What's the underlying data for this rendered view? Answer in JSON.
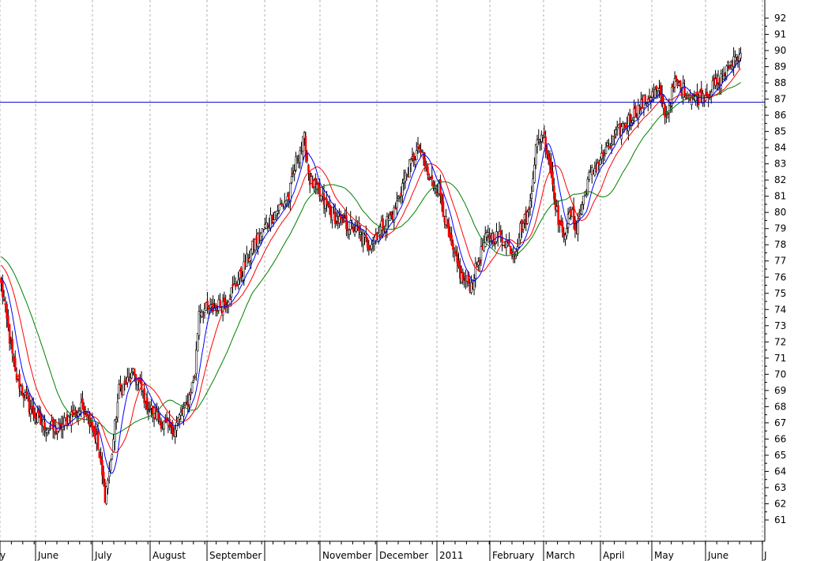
{
  "chart_data": {
    "type": "candlestick",
    "title": "",
    "xlabel": "",
    "ylabel": "",
    "ylim": [
      60,
      93
    ],
    "y_ticks": [
      61,
      62,
      63,
      64,
      65,
      66,
      67,
      68,
      69,
      70,
      71,
      72,
      73,
      74,
      75,
      76,
      77,
      78,
      79,
      80,
      81,
      82,
      83,
      84,
      85,
      86,
      87,
      88,
      89,
      90,
      91,
      92
    ],
    "x_tick_labels": [
      "June",
      "July",
      "August",
      "September",
      "November",
      "December",
      "2011",
      "February",
      "March",
      "April",
      "May",
      "June"
    ],
    "x_edge_labels": [
      "y",
      "J"
    ],
    "grid": "vertical dashed at month starts",
    "horizontal_line": 86.8,
    "colors": {
      "up_candle": "#ffffff",
      "down_candle": "#ff0000",
      "wick": "#000000",
      "ma_short": "#0000ff",
      "ma_mid": "#ff0000",
      "ma_long": "#008000",
      "hline": "#0000cc",
      "grid": "#b0b0b0"
    },
    "close_anchors": [
      [
        0,
        75.5
      ],
      [
        10,
        70
      ],
      [
        20,
        68
      ],
      [
        28,
        67
      ],
      [
        40,
        66.5
      ],
      [
        50,
        67.5
      ],
      [
        60,
        68
      ],
      [
        68,
        66
      ],
      [
        74,
        62.5
      ],
      [
        78,
        64.5
      ],
      [
        84,
        69
      ],
      [
        95,
        70
      ],
      [
        105,
        68
      ],
      [
        115,
        67
      ],
      [
        122,
        66.5
      ],
      [
        128,
        67.5
      ],
      [
        132,
        68
      ],
      [
        138,
        70
      ],
      [
        141,
        74
      ],
      [
        150,
        74
      ],
      [
        160,
        74.5
      ],
      [
        170,
        76
      ],
      [
        180,
        78
      ],
      [
        195,
        80
      ],
      [
        205,
        81
      ],
      [
        211,
        83.5
      ],
      [
        216,
        84.5
      ],
      [
        220,
        82
      ],
      [
        227,
        81
      ],
      [
        240,
        79.5
      ],
      [
        252,
        79
      ],
      [
        262,
        78
      ],
      [
        270,
        79
      ],
      [
        280,
        80
      ],
      [
        287,
        82
      ],
      [
        292,
        83
      ],
      [
        298,
        84
      ],
      [
        305,
        82
      ],
      [
        312,
        81.5
      ],
      [
        320,
        78
      ],
      [
        328,
        76
      ],
      [
        335,
        75.5
      ],
      [
        340,
        77
      ],
      [
        346,
        78.5
      ],
      [
        356,
        78.5
      ],
      [
        366,
        77.5
      ],
      [
        370,
        79
      ],
      [
        376,
        80
      ],
      [
        381,
        84
      ],
      [
        386,
        85
      ],
      [
        391,
        83
      ],
      [
        396,
        80
      ],
      [
        400,
        78.5
      ],
      [
        406,
        80
      ],
      [
        410,
        79
      ],
      [
        418,
        82
      ],
      [
        425,
        83
      ],
      [
        433,
        84
      ],
      [
        440,
        85
      ],
      [
        450,
        86
      ],
      [
        460,
        87
      ],
      [
        468,
        87.5
      ],
      [
        474,
        86
      ],
      [
        480,
        88
      ],
      [
        487,
        87.5
      ],
      [
        495,
        87
      ],
      [
        505,
        87.5
      ],
      [
        515,
        88.5
      ],
      [
        522,
        89.5
      ],
      [
        527,
        90
      ]
    ],
    "ma_periods": [
      10,
      20,
      40
    ],
    "ma_long_start": 77.3,
    "ma_mid_start": 76.8
  }
}
